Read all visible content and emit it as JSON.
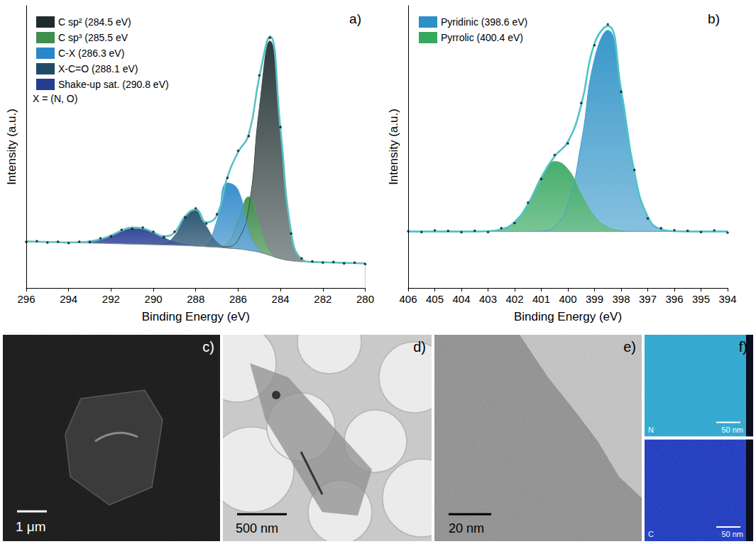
{
  "chart_data": [
    {
      "type": "line",
      "title": "a)",
      "xlabel": "Binding Energy (eV)",
      "ylabel": "Intensity (a.u.)",
      "x": [
        280,
        280.5,
        281,
        281.5,
        282,
        282.5,
        283,
        283.5,
        284,
        284.5,
        285,
        285.5,
        286,
        286.5,
        287,
        287.5,
        288,
        288.5,
        289,
        289.5,
        290,
        290.5,
        291,
        291.5,
        292,
        292.5,
        293,
        293.5,
        294,
        294.5,
        295,
        295.5,
        296
      ],
      "xlim": [
        296,
        280
      ],
      "xticks": [
        296,
        294,
        292,
        290,
        288,
        286,
        284,
        282,
        280
      ],
      "ylim": [
        0,
        100
      ],
      "tick_labels": "x",
      "grid": false,
      "legend": "upper left",
      "annotations": [
        "X = (N, O)"
      ],
      "background": [
        8.7,
        8.8,
        8.9,
        9.0,
        9.1,
        9.2,
        9.3,
        9.6,
        10.3,
        11.5,
        12.6,
        13.3,
        13.8,
        14.1,
        14.4,
        14.6,
        14.8,
        15.0,
        15.1,
        15.2,
        15.3,
        15.4,
        15.5,
        15.6,
        15.7,
        15.8,
        15.9,
        16.0,
        16.1,
        16.2,
        16.3,
        16.4,
        16.5
      ],
      "series": [
        {
          "name": "C sp² (284.5 eV)",
          "type": "area",
          "color": "#1d2c2d",
          "values": [
            8.7,
            8.8,
            8.9,
            9.0,
            9.1,
            9.2,
            10.2,
            19.9,
            56.3,
            87.5,
            63.6,
            28.3,
            17.0,
            14.6,
            14.4,
            14.6,
            14.8,
            15.0,
            15.1,
            15.2,
            15.3,
            15.4,
            15.5,
            15.6,
            15.7,
            15.8,
            15.9,
            16.0,
            16.1,
            16.2,
            16.3,
            16.4,
            16.5
          ]
        },
        {
          "name": "C sp³ (285.5 eV",
          "type": "area",
          "color": "#3f8f4c",
          "values": [
            8.7,
            8.8,
            8.9,
            9.0,
            9.1,
            9.2,
            9.3,
            9.6,
            10.3,
            13.1,
            22.8,
            32.3,
            24.0,
            15.7,
            14.5,
            14.6,
            14.8,
            15.0,
            15.1,
            15.2,
            15.3,
            15.4,
            15.5,
            15.6,
            15.7,
            15.8,
            15.9,
            16.0,
            16.1,
            16.2,
            16.3,
            16.4,
            16.5
          ]
        },
        {
          "name": "C-X (286.3 eV)",
          "type": "area",
          "color": "#2a87c9",
          "values": [
            8.7,
            8.8,
            8.9,
            9.0,
            9.1,
            9.2,
            9.3,
            9.6,
            10.3,
            11.5,
            13.5,
            20.3,
            34.7,
            37.2,
            23.8,
            16.0,
            14.9,
            15.0,
            15.1,
            15.2,
            15.3,
            15.4,
            15.5,
            15.6,
            15.7,
            15.8,
            15.9,
            16.0,
            16.1,
            16.2,
            16.3,
            16.4,
            16.5
          ]
        },
        {
          "name": "X-C=O (288.1 eV)",
          "type": "area",
          "color": "#1e4b6a",
          "values": [
            8.7,
            8.8,
            8.9,
            9.0,
            9.1,
            9.2,
            9.3,
            9.6,
            10.3,
            11.5,
            12.6,
            13.3,
            13.8,
            14.3,
            16.2,
            21.8,
            27.6,
            25.0,
            18.5,
            15.7,
            15.3,
            15.4,
            15.5,
            15.6,
            15.7,
            15.8,
            15.9,
            16.0,
            16.1,
            16.2,
            16.3,
            16.4,
            16.5
          ]
        },
        {
          "name": "Shake-up sat. (290.8 eV)",
          "type": "area",
          "color": "#263c92",
          "values": [
            8.7,
            8.8,
            8.9,
            9.0,
            9.1,
            9.2,
            9.3,
            9.6,
            10.3,
            11.5,
            12.6,
            13.3,
            13.8,
            14.1,
            14.4,
            14.6,
            14.9,
            15.4,
            16.3,
            17.8,
            19.7,
            21.1,
            21.4,
            20.3,
            18.6,
            17.3,
            16.5,
            16.2,
            16.1,
            16.2,
            16.3,
            16.4,
            16.5
          ]
        },
        {
          "type": "line",
          "color": "#5cc0c6",
          "line_style": "solid",
          "values": [
            8.7,
            8.8,
            8.9,
            9.0,
            9.1,
            9.2,
            10.2,
            19.9,
            56.3,
            89.1,
            74.7,
            54.3,
            48.1,
            39.5,
            25.7,
            23.2,
            27.8,
            25.4,
            19.7,
            18.3,
            19.7,
            21.1,
            21.4,
            20.3,
            18.6,
            17.3,
            16.5,
            16.2,
            16.1,
            16.2,
            16.3,
            16.4,
            16.5
          ]
        },
        {
          "type": "scatter",
          "color": "#111111",
          "marker": "circle",
          "values": [
            8.5,
            9.0,
            8.7,
            9.2,
            9.0,
            9.4,
            10.5,
            19.3,
            57.0,
            88.6,
            75.3,
            53.8,
            48.6,
            39.0,
            26.1,
            22.8,
            28.2,
            25.0,
            19.9,
            18.0,
            19.9,
            21.4,
            21.0,
            20.6,
            18.3,
            17.6,
            16.3,
            16.4,
            15.9,
            16.4,
            16.1,
            16.6,
            16.3
          ]
        }
      ]
    },
    {
      "type": "line",
      "title": "b)",
      "xlabel": "Binding Energy (eV)",
      "ylabel": "Intensity (a.u.)",
      "x": [
        394,
        394.5,
        395,
        395.5,
        396,
        396.5,
        397,
        397.5,
        398,
        398.5,
        399,
        399.5,
        400,
        400.5,
        401,
        401.5,
        402,
        402.5,
        403,
        403.5,
        404,
        404.5,
        405,
        405.5,
        406
      ],
      "xlim": [
        406,
        394
      ],
      "xticks": [
        406,
        405,
        404,
        403,
        402,
        401,
        400,
        399,
        398,
        397,
        396,
        395,
        394
      ],
      "ylim": [
        0,
        100
      ],
      "tick_labels": "x",
      "grid": false,
      "legend": "upper left",
      "background": [
        20,
        20,
        20,
        20,
        20,
        20,
        20,
        20,
        20,
        20,
        20,
        20,
        20,
        20,
        20,
        20,
        20,
        20,
        20,
        20,
        20,
        20,
        20,
        20,
        20
      ],
      "series": [
        {
          "name": "Pyridinic (398.6 eV)",
          "type": "area",
          "color": "#2a90c6",
          "values": [
            20,
            20,
            20,
            20,
            20.1,
            20.8,
            25.3,
            40.9,
            69.9,
            91.3,
            81.2,
            51.5,
            29.7,
            21.8,
            20.2,
            20,
            20,
            20,
            20,
            20,
            20,
            20,
            20,
            20,
            20
          ]
        },
        {
          "name": "Pyrrolic (400.4 eV)",
          "type": "area",
          "color": "#38a860",
          "values": [
            20,
            20,
            20,
            20,
            20,
            20,
            20,
            20,
            20.3,
            21.5,
            25.4,
            33.3,
            42.1,
            44.8,
            38.9,
            29.7,
            23.4,
            20.8,
            20.1,
            20,
            20,
            20,
            20,
            20,
            20
          ]
        },
        {
          "type": "line",
          "color": "#4ec3c9",
          "line_style": "solid",
          "values": [
            20,
            20,
            20,
            20,
            20.1,
            20.8,
            25.3,
            40.9,
            70.2,
            92.8,
            86.6,
            64.8,
            51.8,
            46.6,
            39.1,
            29.7,
            23.4,
            20.8,
            20.1,
            20,
            20,
            20,
            20,
            20,
            20
          ]
        },
        {
          "type": "scatter",
          "color": "#111111",
          "marker": "circle",
          "values": [
            19.6,
            20.4,
            19.8,
            20.3,
            20.5,
            21.2,
            24.6,
            41.8,
            69.5,
            93.4,
            86.0,
            65.5,
            51.2,
            47.1,
            38.6,
            30.2,
            23.0,
            21.2,
            19.8,
            20.3,
            19.7,
            20.2,
            20.4,
            19.8,
            20.1
          ]
        }
      ]
    }
  ],
  "images": [
    {
      "label": "c)",
      "scale_bar": "1 μm"
    },
    {
      "label": "d)",
      "scale_bar": "500 nm"
    },
    {
      "label": "e)",
      "scale_bar": "20 nm"
    },
    {
      "label": "f)",
      "maps": [
        {
          "element": "N",
          "scale_bar": "50 nm"
        },
        {
          "element": "C",
          "scale_bar": "50 nm"
        }
      ]
    }
  ]
}
